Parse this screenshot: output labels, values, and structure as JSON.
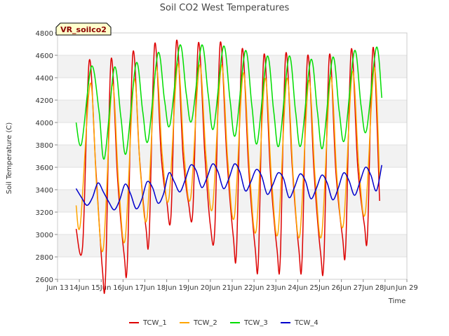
{
  "chart_data": {
    "type": "line",
    "title": "Soil CO2 West Temperatures",
    "xlabel": "Time",
    "ylabel": "Soil Temperature (C)",
    "badge": "VR_soilco2",
    "ylim": [
      2600,
      4800
    ],
    "yticks": [
      2600,
      2800,
      3000,
      3200,
      3400,
      3600,
      3800,
      4000,
      4200,
      4400,
      4600,
      4800
    ],
    "xlim": [
      13,
      29
    ],
    "xticks": [
      13,
      14,
      15,
      16,
      17,
      18,
      19,
      20,
      21,
      22,
      23,
      24,
      25,
      26,
      27,
      28,
      29
    ],
    "xticklabels": [
      "Jun 13",
      "14Jun",
      "15Jun",
      "16Jun",
      "17Jun",
      "18Jun",
      "19Jun",
      "20Jun",
      "21Jun",
      "22Jun",
      "23Jun",
      "24Jun",
      "25Jun",
      "26Jun",
      "27Jun",
      "28Jun",
      "Jun 29"
    ],
    "grid": "horizontal bands",
    "legend_position": "bottom",
    "series": [
      {
        "name": "TCW_1",
        "color": "#dd0000",
        "x": [
          13.85,
          14.15,
          14.45,
          14.75,
          15.05,
          15.2,
          15.45,
          15.75,
          16.05,
          16.2,
          16.45,
          16.75,
          17.05,
          17.2,
          17.45,
          17.75,
          18.0,
          18.2,
          18.45,
          18.75,
          19.0,
          19.2,
          19.45,
          19.75,
          20.0,
          20.2,
          20.45,
          20.75,
          21.05,
          21.2,
          21.45,
          21.75,
          22.05,
          22.2,
          22.45,
          22.75,
          23.05,
          23.2,
          23.45,
          23.75,
          24.05,
          24.2,
          24.45,
          24.75,
          25.05,
          25.2,
          25.45,
          25.75,
          26.05,
          26.2,
          26.45,
          26.75,
          27.05,
          27.2,
          27.45,
          27.75
        ],
        "y": [
          3050,
          2900,
          4550,
          3600,
          2700,
          2630,
          4560,
          3500,
          2820,
          2760,
          4620,
          3700,
          3060,
          3000,
          4700,
          3700,
          3300,
          3180,
          4730,
          3700,
          3280,
          3220,
          4710,
          3700,
          3080,
          3040,
          4710,
          3700,
          2980,
          2870,
          4650,
          3600,
          2880,
          2780,
          4600,
          3550,
          2870,
          2780,
          4610,
          3600,
          2870,
          2780,
          4590,
          3550,
          2830,
          2780,
          4600,
          3550,
          2980,
          2900,
          4650,
          3600,
          3090,
          3020,
          4670,
          3300
        ]
      },
      {
        "name": "TCW_2",
        "color": "#ffa500",
        "x": [
          13.85,
          14.05,
          14.5,
          14.8,
          15.1,
          15.5,
          15.8,
          16.1,
          16.5,
          16.8,
          17.1,
          17.5,
          17.8,
          18.1,
          18.5,
          18.8,
          19.1,
          19.5,
          19.8,
          20.1,
          20.5,
          20.8,
          21.1,
          21.5,
          21.8,
          22.1,
          22.5,
          22.8,
          23.1,
          23.5,
          23.8,
          24.1,
          24.5,
          24.8,
          25.1,
          25.5,
          25.8,
          26.1,
          26.5,
          26.8,
          27.1,
          27.5,
          27.75
        ],
        "y": [
          3260,
          3100,
          4350,
          3400,
          2880,
          4340,
          3450,
          2960,
          4380,
          3550,
          3150,
          4490,
          3700,
          3320,
          4520,
          3700,
          3330,
          4510,
          3700,
          3240,
          4510,
          3650,
          3160,
          4440,
          3550,
          3040,
          4390,
          3500,
          3020,
          4390,
          3500,
          3000,
          4370,
          3500,
          3000,
          4400,
          3500,
          3100,
          4450,
          3600,
          3200,
          4490,
          3500
        ]
      },
      {
        "name": "TCW_3",
        "color": "#00dd00",
        "x": [
          13.85,
          14.1,
          14.55,
          14.9,
          15.15,
          15.6,
          15.9,
          16.15,
          16.6,
          16.9,
          17.15,
          17.6,
          17.9,
          18.15,
          18.6,
          18.9,
          19.15,
          19.6,
          19.9,
          20.15,
          20.6,
          20.9,
          21.15,
          21.6,
          21.9,
          22.15,
          22.6,
          22.9,
          23.15,
          23.6,
          23.9,
          24.15,
          24.6,
          24.9,
          25.15,
          25.6,
          25.9,
          26.15,
          26.6,
          26.9,
          27.15,
          27.6,
          27.85
        ],
        "y": [
          4000,
          3810,
          4500,
          4100,
          3680,
          4490,
          4050,
          3730,
          4530,
          4100,
          3840,
          4620,
          4200,
          3980,
          4690,
          4250,
          4020,
          4690,
          4250,
          3950,
          4680,
          4200,
          3890,
          4640,
          4150,
          3820,
          4590,
          4100,
          3800,
          4590,
          4100,
          3800,
          4560,
          4100,
          3780,
          4580,
          4100,
          3850,
          4640,
          4150,
          3930,
          4670,
          4220
        ]
      },
      {
        "name": "TCW_4",
        "color": "#0000cc",
        "x": [
          13.85,
          14.1,
          14.35,
          14.6,
          14.85,
          15.1,
          15.35,
          15.6,
          15.85,
          16.1,
          16.35,
          16.6,
          16.85,
          17.1,
          17.35,
          17.6,
          17.85,
          18.1,
          18.35,
          18.6,
          18.85,
          19.1,
          19.35,
          19.6,
          19.85,
          20.1,
          20.35,
          20.6,
          20.85,
          21.1,
          21.35,
          21.6,
          21.85,
          22.1,
          22.35,
          22.6,
          22.85,
          23.1,
          23.35,
          23.6,
          23.85,
          24.1,
          24.35,
          24.6,
          24.85,
          25.1,
          25.35,
          25.6,
          25.85,
          26.1,
          26.35,
          26.6,
          26.85,
          27.1,
          27.35,
          27.6,
          27.85
        ],
        "y": [
          3410,
          3330,
          3260,
          3330,
          3460,
          3380,
          3290,
          3220,
          3310,
          3450,
          3360,
          3230,
          3310,
          3470,
          3420,
          3280,
          3360,
          3550,
          3470,
          3380,
          3490,
          3620,
          3570,
          3420,
          3510,
          3630,
          3560,
          3410,
          3500,
          3630,
          3560,
          3390,
          3470,
          3580,
          3520,
          3360,
          3440,
          3550,
          3500,
          3330,
          3420,
          3540,
          3480,
          3320,
          3410,
          3530,
          3460,
          3310,
          3410,
          3550,
          3480,
          3350,
          3470,
          3600,
          3530,
          3390,
          3620
        ]
      }
    ]
  }
}
